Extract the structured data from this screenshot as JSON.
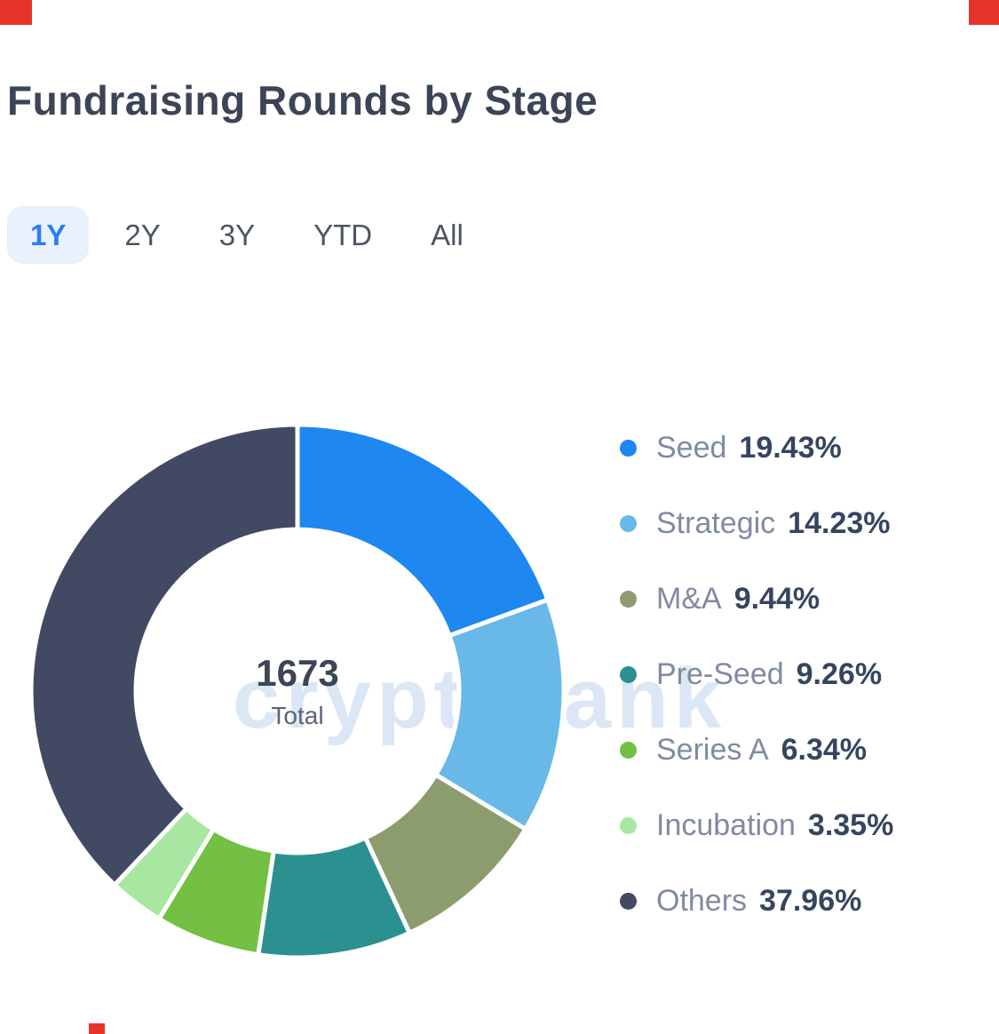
{
  "header": {
    "title": "Fundraising Rounds by Stage"
  },
  "tabs": {
    "items": [
      {
        "label": "1Y",
        "selected": true
      },
      {
        "label": "2Y",
        "selected": false
      },
      {
        "label": "3Y",
        "selected": false
      },
      {
        "label": "YTD",
        "selected": false
      },
      {
        "label": "All",
        "selected": false
      }
    ]
  },
  "watermark": {
    "text": "cryptorank"
  },
  "chart_data": {
    "type": "pie",
    "subtype": "donut",
    "title": "Fundraising Rounds by Stage",
    "period_selected": "1Y",
    "center": {
      "value": "1673",
      "label": "Total"
    },
    "legend_position": "right",
    "series": [
      {
        "label": "Seed",
        "value": 19.43,
        "display": "19.43%",
        "color": "#1e87f0"
      },
      {
        "label": "Strategic",
        "value": 14.23,
        "display": "14.23%",
        "color": "#68b8e8"
      },
      {
        "label": "M&A",
        "value": 9.44,
        "display": "9.44%",
        "color": "#8d9c6e"
      },
      {
        "label": "Pre-Seed",
        "value": 9.26,
        "display": "9.26%",
        "color": "#2b9090"
      },
      {
        "label": "Series A",
        "value": 6.34,
        "display": "6.34%",
        "color": "#73c044"
      },
      {
        "label": "Incubation",
        "value": 3.35,
        "display": "3.35%",
        "color": "#a8e7a2"
      },
      {
        "label": "Others",
        "value": 37.96,
        "display": "37.96%",
        "color": "#424a63"
      }
    ]
  },
  "decorations": {
    "corner_color": "#e8332c"
  }
}
